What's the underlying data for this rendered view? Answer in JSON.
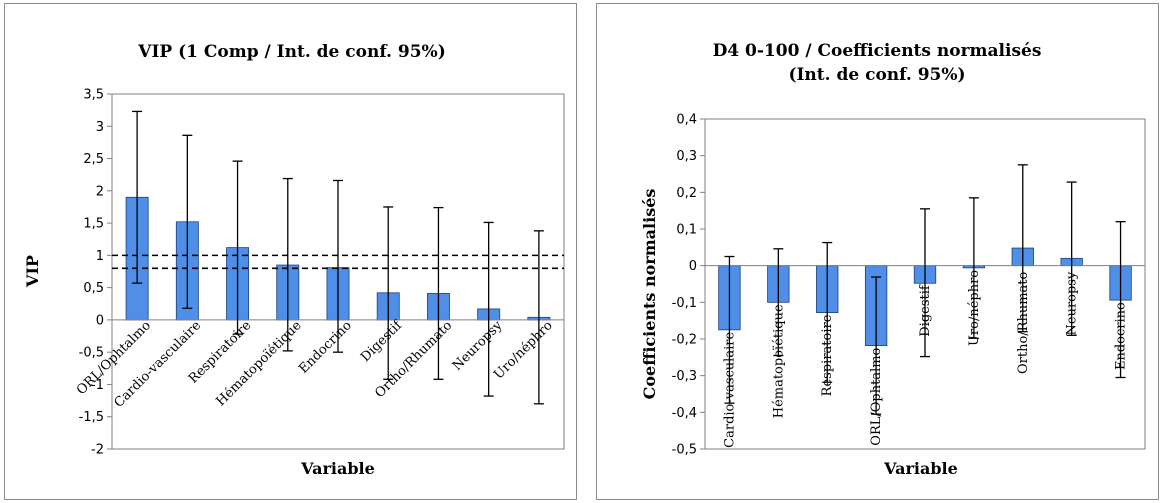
{
  "colors": {
    "bar": "#4f8fe8",
    "bar_stroke": "#1f3f7a",
    "grid": "#000000",
    "axis": "#808080"
  },
  "chart_data": [
    {
      "type": "bar",
      "title": "VIP (1 Comp / Int. de conf. 95%)",
      "xlabel": "Variable",
      "ylabel": "VIP",
      "ylim": [
        -2,
        3.5
      ],
      "yticks": [
        -2,
        -1.5,
        -1,
        -0.5,
        0,
        0.5,
        1,
        1.5,
        2,
        2.5,
        3,
        3.5
      ],
      "ytick_labels": [
        "-2",
        "-1,5",
        "-1",
        "-0,5",
        "0",
        "0,5",
        "1",
        "1,5",
        "2",
        "2,5",
        "3",
        "3,5"
      ],
      "categories": [
        "ORL/Ophtalmo",
        "Cardio-vasculaire",
        "Respiratoire",
        "Hématopoïétique",
        "Endocrino",
        "Digestif",
        "Ortho/Rhumato",
        "Neuropsy",
        "Uro/néphro"
      ],
      "values": [
        1.9,
        1.52,
        1.12,
        0.85,
        0.81,
        0.42,
        0.41,
        0.17,
        0.04
      ],
      "err_low": [
        0.57,
        0.18,
        -0.22,
        -0.48,
        -0.5,
        -0.92,
        -0.92,
        -1.18,
        -1.3
      ],
      "err_high": [
        3.23,
        2.86,
        2.46,
        2.19,
        2.16,
        1.75,
        1.74,
        1.51,
        1.38
      ],
      "reference_lines": [
        1,
        0.8
      ],
      "grid": false
    },
    {
      "type": "bar",
      "title_lines": [
        "D4 0-100 / Coefficients normalisés",
        "(Int. de conf. 95%)"
      ],
      "xlabel": "Variable",
      "ylabel": "Coefficients normalisés",
      "ylim": [
        -0.5,
        0.4
      ],
      "yticks": [
        -0.5,
        -0.4,
        -0.3,
        -0.2,
        -0.1,
        0,
        0.1,
        0.2,
        0.3,
        0.4
      ],
      "ytick_labels": [
        "-0,5",
        "-0,4",
        "-0,3",
        "-0,2",
        "-0,1",
        "0",
        "0,1",
        "0,2",
        "0,3",
        "0,4"
      ],
      "categories": [
        "Cardio-vasculaire",
        "Hématopoïétique",
        "Respiratoire",
        "ORL/Ophtalmo",
        "Digestif",
        "Uro/néphro",
        "Ortho/Rhumato",
        "Neuropsy",
        "Endocrino"
      ],
      "values": [
        -0.175,
        -0.1,
        -0.128,
        -0.218,
        -0.048,
        -0.006,
        0.048,
        0.02,
        -0.094
      ],
      "err_low": [
        -0.375,
        -0.245,
        -0.318,
        -0.405,
        -0.248,
        -0.198,
        -0.18,
        -0.19,
        -0.305
      ],
      "err_high": [
        0.025,
        0.046,
        0.063,
        -0.031,
        0.155,
        0.185,
        0.275,
        0.228,
        0.12
      ],
      "grid": false
    }
  ]
}
